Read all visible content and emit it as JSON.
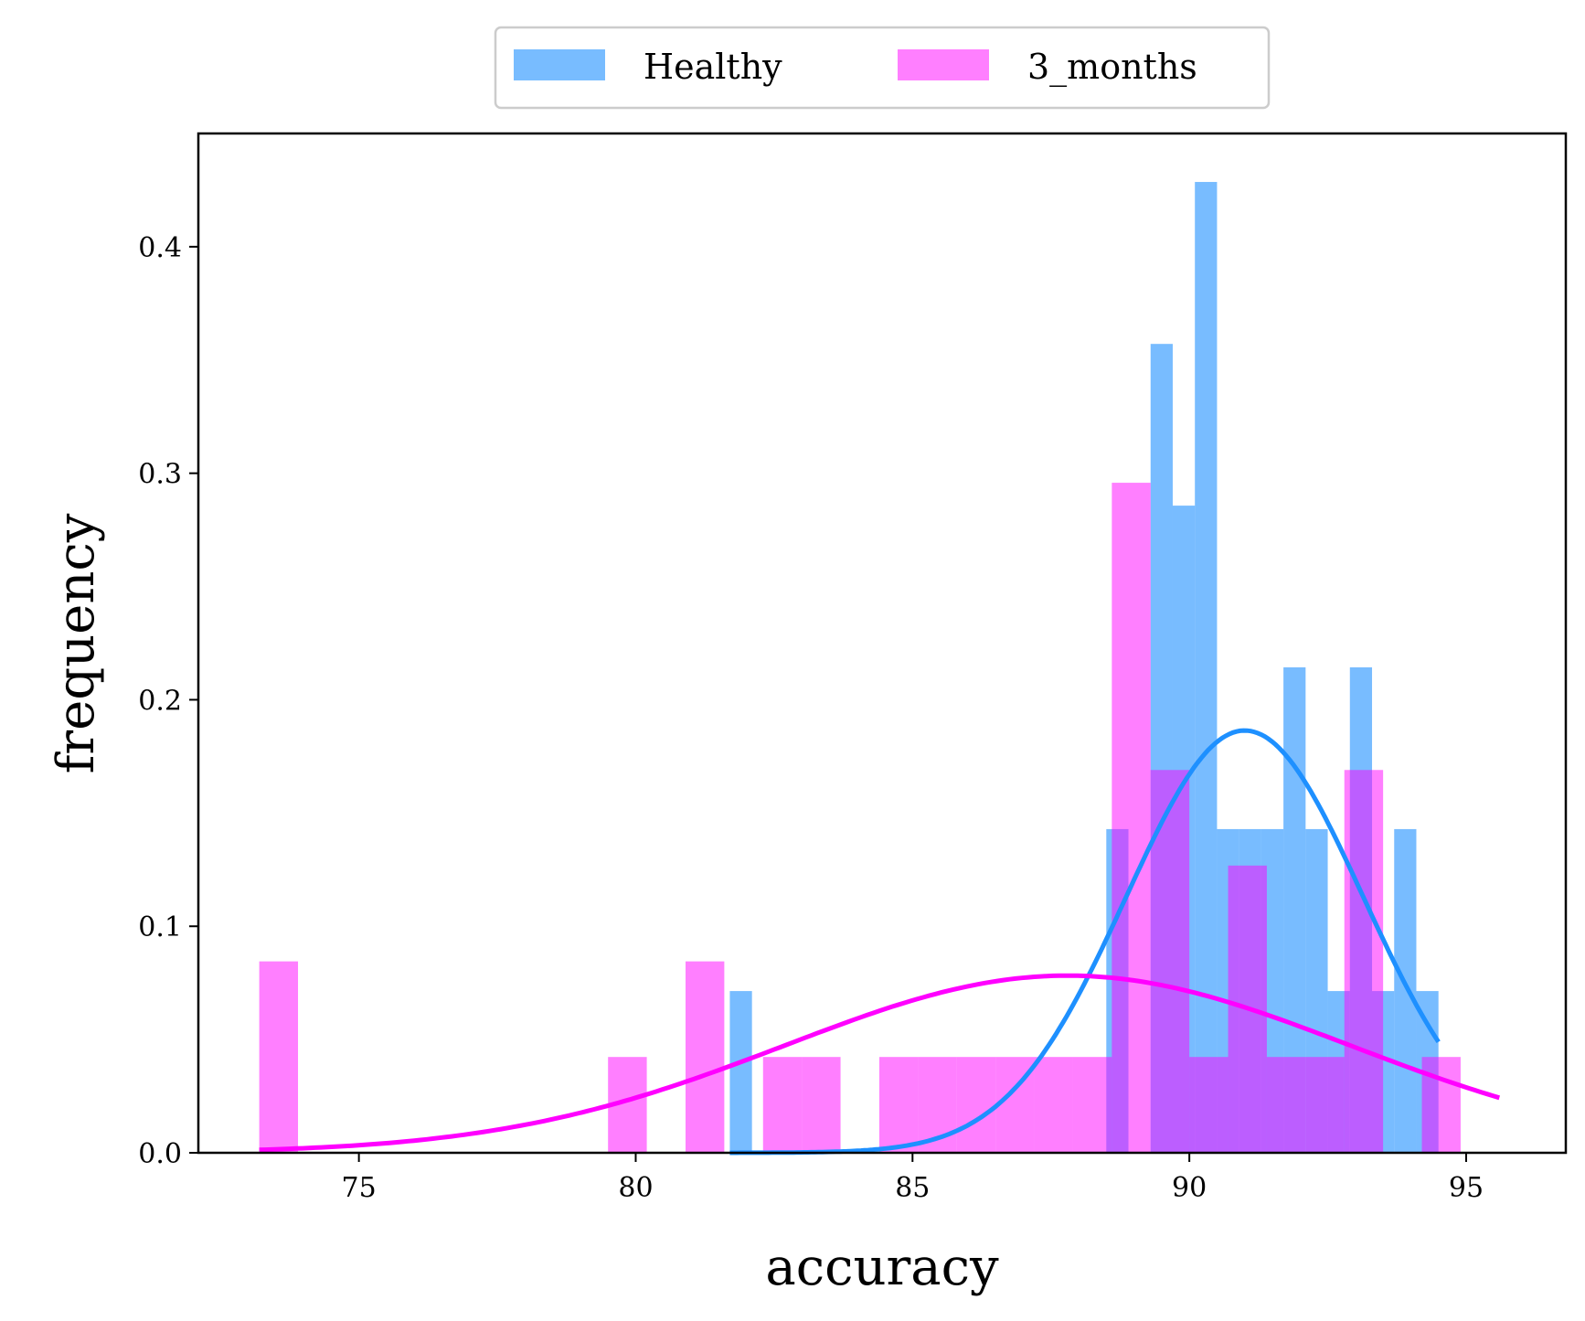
{
  "chart_data": {
    "type": "bar",
    "title": "",
    "xlabel": "accuracy",
    "ylabel": "frequency",
    "xlim": [
      72.1,
      96.8
    ],
    "ylim": [
      0,
      0.45
    ],
    "xticks": [
      75,
      80,
      85,
      90,
      95
    ],
    "yticks": [
      0.0,
      0.1,
      0.2,
      0.3,
      0.4
    ],
    "xtick_labels": [
      "75",
      "80",
      "85",
      "90",
      "95"
    ],
    "ytick_labels": [
      "0.0",
      "0.1",
      "0.2",
      "0.3",
      "0.4"
    ],
    "grid": false,
    "legend_position": "top-center",
    "series": [
      {
        "name": "Healthy",
        "kind": "histogram",
        "color": "#1e90ff",
        "opacity": 0.6,
        "bin_edges": [
          81.7,
          82.1,
          82.5,
          82.9,
          83.3,
          83.7,
          84.1,
          84.5,
          84.9,
          85.3,
          85.7,
          86.1,
          86.5,
          86.9,
          87.3,
          87.7,
          88.1,
          88.5,
          88.9,
          89.3,
          89.7,
          90.1,
          90.5,
          90.9,
          91.3,
          91.7,
          92.1,
          92.5,
          92.9,
          93.3,
          93.7,
          94.1,
          94.5
        ],
        "values": [
          0.0714,
          0,
          0,
          0,
          0,
          0,
          0,
          0,
          0,
          0,
          0,
          0,
          0,
          0,
          0,
          0,
          0,
          0.1429,
          0,
          0.3571,
          0.2857,
          0.4286,
          0.1429,
          0.1429,
          0.1429,
          0.2143,
          0.1429,
          0.0714,
          0.2143,
          0.0714,
          0.1429,
          0.0714
        ]
      },
      {
        "name": "3_months",
        "kind": "histogram",
        "color": "#ff00ff",
        "opacity": 0.5,
        "bin_edges": [
          73.2,
          73.9,
          74.6,
          75.3,
          76.0,
          76.7,
          77.4,
          78.1,
          78.8,
          79.5,
          80.2,
          80.9,
          81.6,
          82.3,
          83.0,
          83.7,
          84.4,
          85.1,
          85.8,
          86.5,
          87.2,
          87.9,
          88.6,
          89.3,
          90.0,
          90.7,
          91.4,
          92.1,
          92.8,
          93.5,
          94.2,
          94.9,
          95.6
        ],
        "values": [
          0.0845,
          0,
          0,
          0,
          0,
          0,
          0,
          0,
          0,
          0.0423,
          0,
          0.0845,
          0,
          0.0423,
          0.0423,
          0,
          0.0423,
          0.0423,
          0.0423,
          0.0423,
          0.0423,
          0.0423,
          0.2958,
          0.169,
          0.0423,
          0.1268,
          0.0423,
          0.0423,
          0.169,
          0.0,
          0.0423,
          0
        ]
      }
    ],
    "fits": [
      {
        "name": "Healthy",
        "kind": "normal_pdf",
        "mean": 91.0,
        "std": 2.14,
        "x_range": [
          81.7,
          94.5
        ],
        "color": "#1e90ff"
      },
      {
        "name": "3_months",
        "kind": "normal_pdf",
        "mean": 87.8,
        "std": 5.1,
        "x_range": [
          73.2,
          95.6
        ],
        "color": "#ff00ff"
      }
    ]
  }
}
